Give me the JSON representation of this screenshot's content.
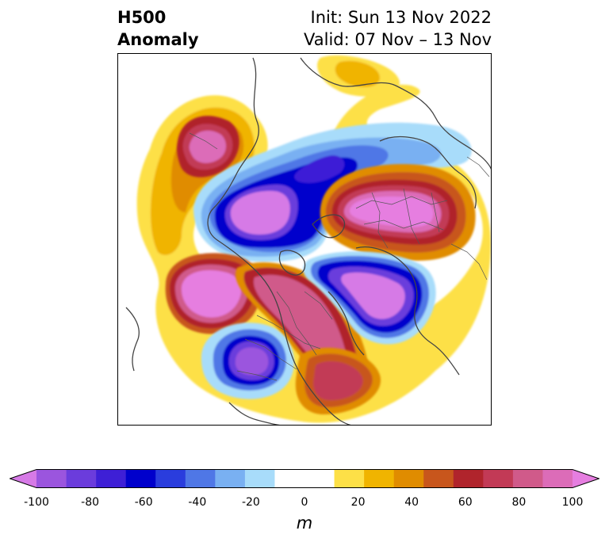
{
  "title": {
    "left_line1": "H500",
    "left_line2": "Anomaly",
    "right_line1": "Init: Sun 13 Nov 2022",
    "right_line2": "Valid: 07 Nov – 13 Nov"
  },
  "colorbar": {
    "unit": "m",
    "min": -100,
    "max": 100,
    "step": 10,
    "tick_labels": [
      "-100",
      "-80",
      "-60",
      "-40",
      "-20",
      "0",
      "20",
      "40",
      "60",
      "80",
      "100"
    ],
    "colors": [
      "#d67ae6",
      "#9b55de",
      "#6b3cdc",
      "#3e1fd6",
      "#0000cc",
      "#2a3ddd",
      "#4f77e6",
      "#79b0f2",
      "#a8dcfa",
      "#ffffff",
      "#ffffff",
      "#fde047",
      "#f0b400",
      "#e08c00",
      "#c8561c",
      "#b0242c",
      "#c23a56",
      "#d05a8a",
      "#dc6cb8",
      "#e67ee0"
    ]
  },
  "map": {
    "region": "Northern Hemisphere polar stereographic",
    "features": [
      "coastlines",
      "country-borders",
      "state-borders"
    ]
  }
}
